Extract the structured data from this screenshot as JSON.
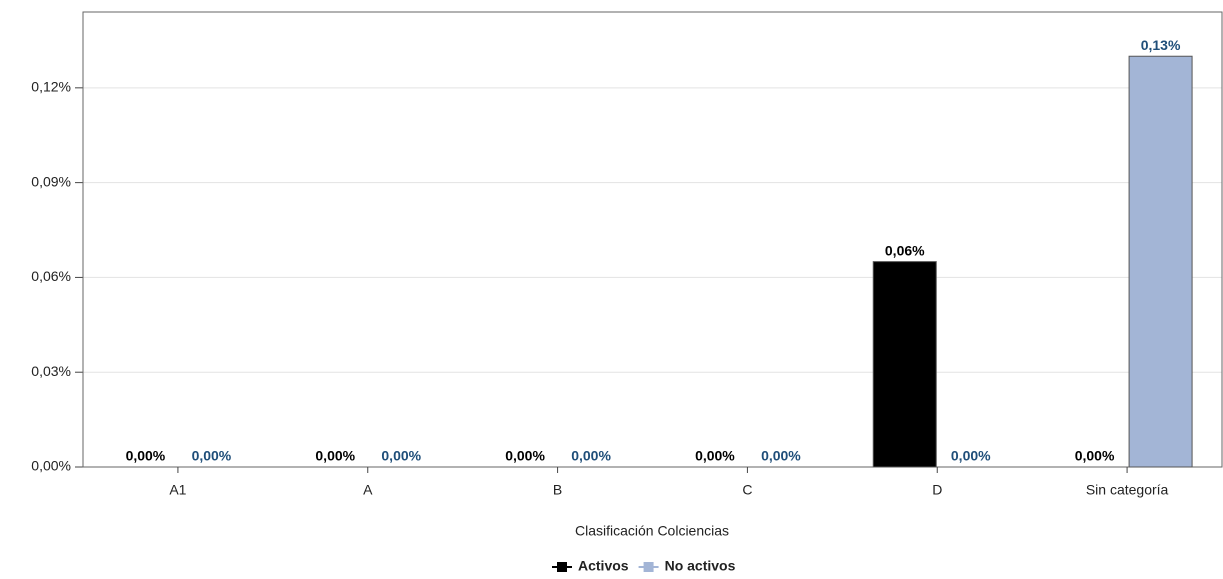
{
  "chart_data": {
    "type": "bar",
    "x_label": "Clasificación Colciencias",
    "categories": [
      "A1",
      "A",
      "B",
      "C",
      "D",
      "Sin categoría"
    ],
    "series": [
      {
        "name": "Activos",
        "color": "#000000",
        "label_color": "#000000",
        "values": [
          0,
          0,
          0,
          0,
          0.065,
          0
        ],
        "value_labels": [
          "0,00%",
          "0,00%",
          "0,00%",
          "0,00%",
          "0,06%",
          "0,00%"
        ]
      },
      {
        "name": "No activos",
        "color": "#a3b5d6",
        "label_color": "#1f4e79",
        "values": [
          0,
          0,
          0,
          0,
          0,
          0.13
        ],
        "value_labels": [
          "0,00%",
          "0,00%",
          "0,00%",
          "0,00%",
          "0,00%",
          "0,13%"
        ]
      }
    ],
    "ylim": [
      0,
      0.144
    ],
    "yticks": [
      {
        "value": 0,
        "label": "0,00%"
      },
      {
        "value": 0.03,
        "label": "0,03%"
      },
      {
        "value": 0.06,
        "label": "0,06%"
      },
      {
        "value": 0.09,
        "label": "0,09%"
      },
      {
        "value": 0.12,
        "label": "0,12%"
      }
    ],
    "grid": true,
    "legend": "bottom"
  }
}
